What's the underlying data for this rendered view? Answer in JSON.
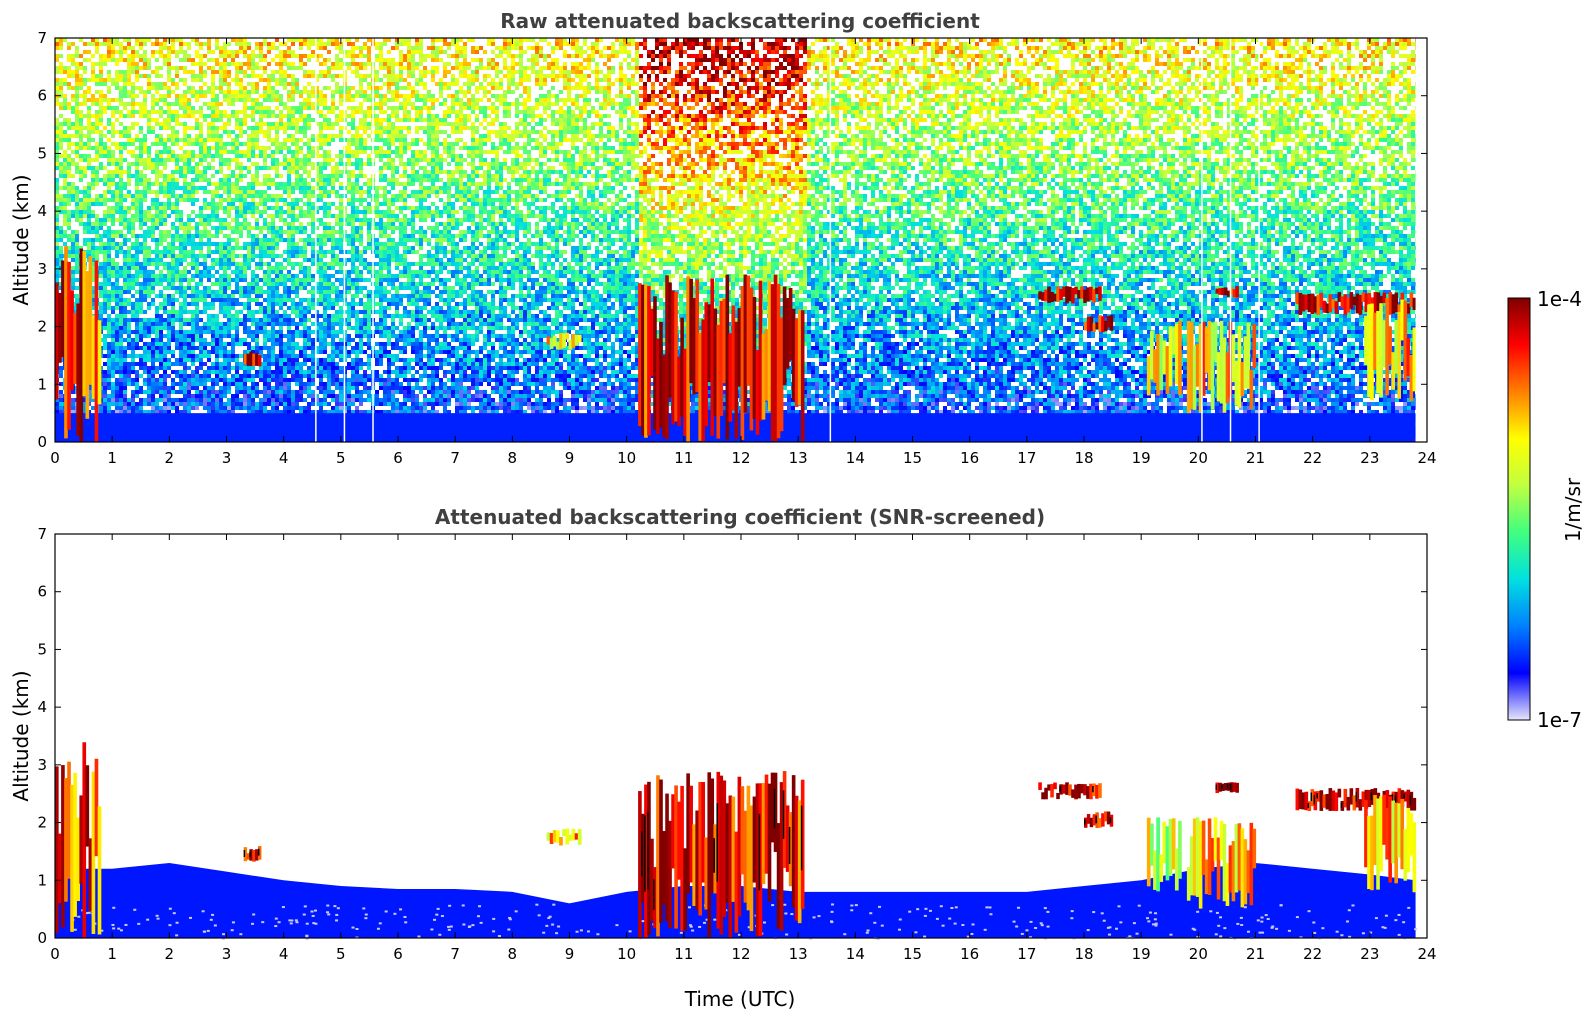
{
  "colors": {
    "colormap": [
      "#e6e6fa",
      "#0000ff",
      "#0080ff",
      "#00e0e0",
      "#40ff80",
      "#c0ff40",
      "#ffff00",
      "#ff8000",
      "#ff0000",
      "#800000"
    ],
    "screened_cloud_core": "#000000"
  },
  "chart_data": [
    {
      "type": "heatmap",
      "title": "Raw attenuated backscattering coefficient",
      "xlabel": "",
      "ylabel": "Altitude (km)",
      "xlim": [
        0,
        24
      ],
      "ylim": [
        0,
        7
      ],
      "xticks": [
        0,
        1,
        2,
        3,
        4,
        5,
        6,
        7,
        8,
        9,
        10,
        11,
        12,
        13,
        14,
        15,
        16,
        17,
        18,
        19,
        20,
        21,
        22,
        23,
        24
      ],
      "yticks": [
        0,
        1,
        2,
        3,
        4,
        5,
        6,
        7
      ],
      "data_end_time": 23.8,
      "noise_gaps_time": [
        4.55,
        5.05,
        5.55,
        13.55,
        20.05,
        20.55,
        21.05
      ],
      "high_noise_band_time": [
        10.2,
        13.1
      ],
      "cloud_features": [
        {
          "time": [
            0.0,
            0.8
          ],
          "altitude": [
            0.0,
            3.4
          ],
          "level": 0.85
        },
        {
          "time": [
            3.3,
            3.6
          ],
          "altitude": [
            1.3,
            1.6
          ],
          "level": 0.95
        },
        {
          "time": [
            8.6,
            9.2
          ],
          "altitude": [
            1.6,
            1.9
          ],
          "level": 0.7
        },
        {
          "time": [
            10.2,
            13.1
          ],
          "altitude": [
            0.0,
            2.9
          ],
          "level": 0.9
        },
        {
          "time": [
            17.2,
            18.3
          ],
          "altitude": [
            2.4,
            2.7
          ],
          "level": 0.95
        },
        {
          "time": [
            18.0,
            18.5
          ],
          "altitude": [
            1.9,
            2.2
          ],
          "level": 0.95
        },
        {
          "time": [
            19.1,
            19.7
          ],
          "altitude": [
            0.8,
            2.1
          ],
          "level": 0.6
        },
        {
          "time": [
            19.8,
            21.0
          ],
          "altitude": [
            0.5,
            2.1
          ],
          "level": 0.7
        },
        {
          "time": [
            20.3,
            20.7
          ],
          "altitude": [
            2.5,
            2.7
          ],
          "level": 0.95
        },
        {
          "time": [
            21.7,
            23.8
          ],
          "altitude": [
            2.2,
            2.6
          ],
          "level": 0.95
        },
        {
          "time": [
            22.9,
            23.8
          ],
          "altitude": [
            0.7,
            2.5
          ],
          "level": 0.7
        }
      ]
    },
    {
      "type": "heatmap",
      "title": "Attenuated backscattering coefficient (SNR-screened)",
      "xlabel": "Time (UTC)",
      "ylabel": "Altitude (km)",
      "xlim": [
        0,
        24
      ],
      "ylim": [
        0,
        7
      ],
      "xticks": [
        0,
        1,
        2,
        3,
        4,
        5,
        6,
        7,
        8,
        9,
        10,
        11,
        12,
        13,
        14,
        15,
        16,
        17,
        18,
        19,
        20,
        21,
        22,
        23,
        24
      ],
      "yticks": [
        0,
        1,
        2,
        3,
        4,
        5,
        6,
        7
      ],
      "data_end_time": 23.8,
      "boundary_layer_top_km": [
        [
          0,
          1.2
        ],
        [
          1,
          1.2
        ],
        [
          2,
          1.3
        ],
        [
          3,
          1.15
        ],
        [
          4,
          1.0
        ],
        [
          5,
          0.9
        ],
        [
          6,
          0.85
        ],
        [
          7,
          0.85
        ],
        [
          8,
          0.8
        ],
        [
          9,
          0.6
        ],
        [
          10,
          0.8
        ],
        [
          11,
          0.9
        ],
        [
          12,
          0.9
        ],
        [
          13,
          0.8
        ],
        [
          14,
          0.8
        ],
        [
          15,
          0.8
        ],
        [
          16,
          0.8
        ],
        [
          17,
          0.8
        ],
        [
          18,
          0.9
        ],
        [
          19,
          1.0
        ],
        [
          20,
          1.2
        ],
        [
          21,
          1.3
        ],
        [
          22,
          1.2
        ],
        [
          23,
          1.1
        ],
        [
          23.8,
          1.0
        ]
      ],
      "cloud_features": [
        {
          "time": [
            0.0,
            0.8
          ],
          "altitude": [
            0.0,
            3.4
          ],
          "level": 0.85
        },
        {
          "time": [
            3.3,
            3.6
          ],
          "altitude": [
            1.3,
            1.6
          ],
          "level": 0.95
        },
        {
          "time": [
            8.6,
            9.2
          ],
          "altitude": [
            1.6,
            1.9
          ],
          "level": 0.7
        },
        {
          "time": [
            10.2,
            13.1
          ],
          "altitude": [
            0.0,
            2.9
          ],
          "level": 0.9
        },
        {
          "time": [
            17.2,
            18.3
          ],
          "altitude": [
            2.4,
            2.7
          ],
          "level": 0.95
        },
        {
          "time": [
            18.0,
            18.5
          ],
          "altitude": [
            1.9,
            2.2
          ],
          "level": 0.95
        },
        {
          "time": [
            19.1,
            19.7
          ],
          "altitude": [
            0.8,
            2.1
          ],
          "level": 0.6
        },
        {
          "time": [
            19.8,
            21.0
          ],
          "altitude": [
            0.5,
            2.1
          ],
          "level": 0.7
        },
        {
          "time": [
            20.3,
            20.7
          ],
          "altitude": [
            2.5,
            2.7
          ],
          "level": 0.95
        },
        {
          "time": [
            21.7,
            23.8
          ],
          "altitude": [
            2.2,
            2.6
          ],
          "level": 0.95
        },
        {
          "time": [
            22.9,
            23.8
          ],
          "altitude": [
            0.7,
            2.5
          ],
          "level": 0.7
        }
      ]
    }
  ],
  "colorbar": {
    "label": "1/m/sr",
    "max_label": "1e-4",
    "min_label": "1e-7",
    "range": [
      "1e-7",
      "1e-4"
    ],
    "scale": "log"
  }
}
